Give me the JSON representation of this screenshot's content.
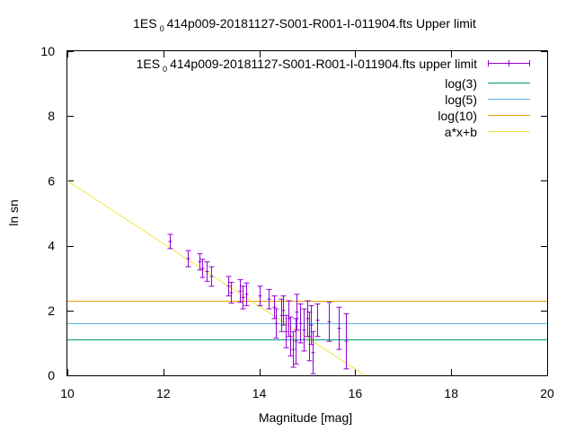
{
  "chart_data": {
    "type": "scatter",
    "title_prefix": "1ES",
    "title_sub": "0",
    "title_suffix": "414p009-20181127-S001-R001-I-011904.fts Upper limit",
    "xlabel": "Magnitude [mag]",
    "ylabel": "ln sn",
    "xlim": [
      10,
      20
    ],
    "ylim": [
      0,
      10
    ],
    "xticks": [
      10,
      12,
      14,
      16,
      18,
      20
    ],
    "yticks": [
      0,
      2,
      4,
      6,
      8,
      10
    ],
    "grid": false,
    "legend_position": "top-right",
    "series": [
      {
        "name_prefix": "1ES",
        "name_sub": "0",
        "name_suffix": "414p009-20181127-S001-R001-I-011904.fts upper limit",
        "kind": "errorbar",
        "color": "#9400d3",
        "points": [
          {
            "x": 12.13,
            "y": 4.13,
            "err": 0.22
          },
          {
            "x": 12.5,
            "y": 3.6,
            "err": 0.25
          },
          {
            "x": 12.75,
            "y": 3.5,
            "err": 0.25
          },
          {
            "x": 12.8,
            "y": 3.3,
            "err": 0.28
          },
          {
            "x": 12.9,
            "y": 3.2,
            "err": 0.3
          },
          {
            "x": 13.0,
            "y": 3.05,
            "err": 0.3
          },
          {
            "x": 13.35,
            "y": 2.75,
            "err": 0.3
          },
          {
            "x": 13.4,
            "y": 2.55,
            "err": 0.32
          },
          {
            "x": 13.6,
            "y": 2.6,
            "err": 0.35
          },
          {
            "x": 13.65,
            "y": 2.4,
            "err": 0.35
          },
          {
            "x": 13.72,
            "y": 2.5,
            "err": 0.35
          },
          {
            "x": 14.0,
            "y": 2.45,
            "err": 0.3
          },
          {
            "x": 14.2,
            "y": 2.35,
            "err": 0.3
          },
          {
            "x": 14.3,
            "y": 2.1,
            "err": 0.35
          },
          {
            "x": 14.35,
            "y": 1.6,
            "err": 0.45
          },
          {
            "x": 14.45,
            "y": 1.85,
            "err": 0.5
          },
          {
            "x": 14.5,
            "y": 2.0,
            "err": 0.45
          },
          {
            "x": 14.55,
            "y": 1.35,
            "err": 0.5
          },
          {
            "x": 14.6,
            "y": 1.75,
            "err": 0.55
          },
          {
            "x": 14.65,
            "y": 1.2,
            "err": 0.6
          },
          {
            "x": 14.7,
            "y": 0.8,
            "err": 0.55
          },
          {
            "x": 14.75,
            "y": 1.05,
            "err": 0.7
          },
          {
            "x": 14.78,
            "y": 1.95,
            "err": 0.55
          },
          {
            "x": 14.85,
            "y": 1.6,
            "err": 0.6
          },
          {
            "x": 14.92,
            "y": 1.4,
            "err": 0.65
          },
          {
            "x": 15.0,
            "y": 1.75,
            "err": 0.55
          },
          {
            "x": 15.03,
            "y": 1.2,
            "err": 0.75
          },
          {
            "x": 15.08,
            "y": 1.55,
            "err": 0.6
          },
          {
            "x": 15.12,
            "y": 0.7,
            "err": 0.65
          },
          {
            "x": 15.2,
            "y": 1.7,
            "err": 0.5
          },
          {
            "x": 15.45,
            "y": 1.65,
            "err": 0.6
          },
          {
            "x": 15.65,
            "y": 1.45,
            "err": 0.65
          },
          {
            "x": 15.8,
            "y": 1.05,
            "err": 0.85
          }
        ]
      },
      {
        "name": "log(3)",
        "kind": "hline",
        "color": "#009e73",
        "y": 1.0986
      },
      {
        "name": "log(5)",
        "kind": "hline",
        "color": "#56b4e9",
        "y": 1.6094
      },
      {
        "name": "log(10)",
        "kind": "hline",
        "color": "#e69f00",
        "y": 2.3026
      },
      {
        "name": "a*x+b",
        "kind": "fitline",
        "color": "#f0e442",
        "x": [
          10,
          16.2
        ],
        "y": [
          6.0,
          0.0
        ]
      }
    ]
  }
}
